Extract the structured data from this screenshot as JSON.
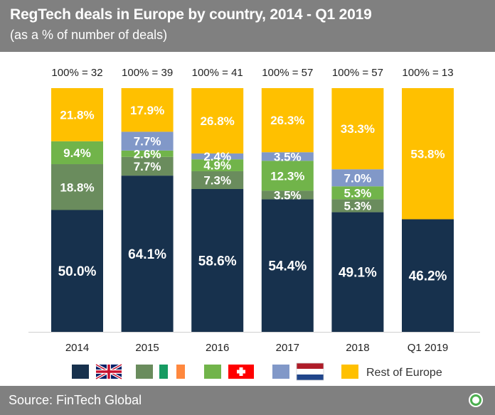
{
  "header": {
    "title": "RegTech deals in Europe by country, 2014 - Q1 2019",
    "subtitle": "(as a % of number of deals)"
  },
  "footer": {
    "source": "Source: FinTech Global"
  },
  "colors": {
    "uk": "#17314d",
    "ireland": "#6a8c5d",
    "switzerland": "#71b44a",
    "netherlands": "#8198c8",
    "rest": "#ffc000",
    "header_bg": "#808080"
  },
  "legend": {
    "items": [
      {
        "key": "uk",
        "icon": "uk-flag-icon"
      },
      {
        "key": "ireland",
        "icon": "ireland-flag-icon"
      },
      {
        "key": "switzerland",
        "icon": "switzerland-flag-icon"
      },
      {
        "key": "netherlands",
        "icon": "netherlands-flag-icon"
      },
      {
        "key": "rest",
        "label": "Rest of Europe"
      }
    ]
  },
  "chart_data": {
    "type": "bar",
    "stacked": true,
    "categories": [
      "2014",
      "2015",
      "2016",
      "2017",
      "2018",
      "Q1 2019"
    ],
    "totals": [
      "100% = 32",
      "100% = 39",
      "100% = 41",
      "100% = 57",
      "100% = 57",
      "100% = 13"
    ],
    "ylim": [
      0,
      100
    ],
    "grid": false,
    "legend_position": "bottom",
    "series": [
      {
        "key": "uk",
        "values": [
          50.0,
          64.1,
          58.6,
          54.4,
          49.1,
          46.2
        ],
        "labels": [
          "50.0%",
          "64.1%",
          "58.6%",
          "54.4%",
          "49.1%",
          "46.2%"
        ]
      },
      {
        "key": "ireland",
        "values": [
          18.8,
          7.7,
          7.3,
          3.5,
          5.3,
          0
        ],
        "labels": [
          "18.8%",
          "7.7%",
          "7.3%",
          "3.5%",
          "5.3%",
          ""
        ]
      },
      {
        "key": "switzerland",
        "values": [
          9.4,
          2.6,
          4.9,
          12.3,
          5.3,
          0
        ],
        "labels": [
          "9.4%",
          "2.6%",
          "4.9%",
          "12.3%",
          "5.3%",
          ""
        ]
      },
      {
        "key": "netherlands",
        "values": [
          0,
          7.7,
          2.4,
          3.5,
          7.0,
          0
        ],
        "labels": [
          "",
          "7.7%",
          "2.4%",
          "3.5%",
          "7.0%",
          ""
        ]
      },
      {
        "key": "rest",
        "name": "Rest of Europe",
        "values": [
          21.8,
          17.9,
          26.8,
          26.3,
          33.3,
          53.8
        ],
        "labels": [
          "21.8%",
          "17.9%",
          "26.8%",
          "26.3%",
          "33.3%",
          "53.8%"
        ]
      }
    ]
  }
}
